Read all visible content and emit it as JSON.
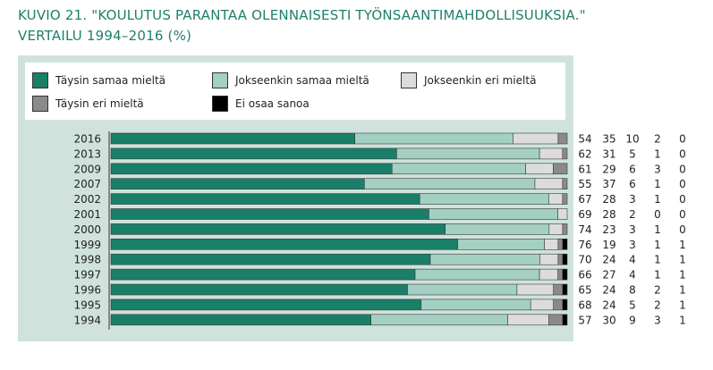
{
  "title_line1": "KUVIO 21. \"KOULUTUS PARANTAA OLENNAISESTI TYÖNSAANTIMAHDOLLISUUKSIA.\"",
  "title_line2": "VERTAILU 1994–2016 (%)",
  "colors": {
    "title": "#1f7f6c",
    "panel": "#cfe3dc",
    "s1": "#1a7f69",
    "s2": "#a4cfc3",
    "s3": "#dcdcdc",
    "s4": "#8a8a8a",
    "s5": "#000000"
  },
  "chart_data": {
    "type": "bar",
    "orientation": "horizontal",
    "stacked": true,
    "categories": [
      "2016",
      "2013",
      "2009",
      "2007",
      "2002",
      "2001",
      "2000",
      "1999",
      "1998",
      "1997",
      "1996",
      "1995",
      "1994"
    ],
    "series": [
      {
        "name": "Täysin samaa mieltä",
        "values": [
          54,
          62,
          61,
          55,
          67,
          69,
          74,
          76,
          70,
          66,
          65,
          68,
          57
        ]
      },
      {
        "name": "Jokseenkin samaa mieltä",
        "values": [
          35,
          31,
          29,
          37,
          28,
          28,
          23,
          19,
          24,
          27,
          24,
          24,
          30
        ]
      },
      {
        "name": "Jokseenkin eri mieltä",
        "values": [
          10,
          5,
          6,
          6,
          3,
          2,
          3,
          3,
          4,
          4,
          8,
          5,
          9
        ]
      },
      {
        "name": "Täysin eri mieltä",
        "values": [
          2,
          1,
          3,
          1,
          1,
          0,
          1,
          1,
          1,
          1,
          2,
          2,
          3
        ]
      },
      {
        "name": "Ei osaa sanoa",
        "values": [
          0,
          0,
          0,
          0,
          0,
          0,
          0,
          1,
          1,
          1,
          1,
          1,
          1
        ]
      }
    ],
    "legend_position": "top"
  }
}
